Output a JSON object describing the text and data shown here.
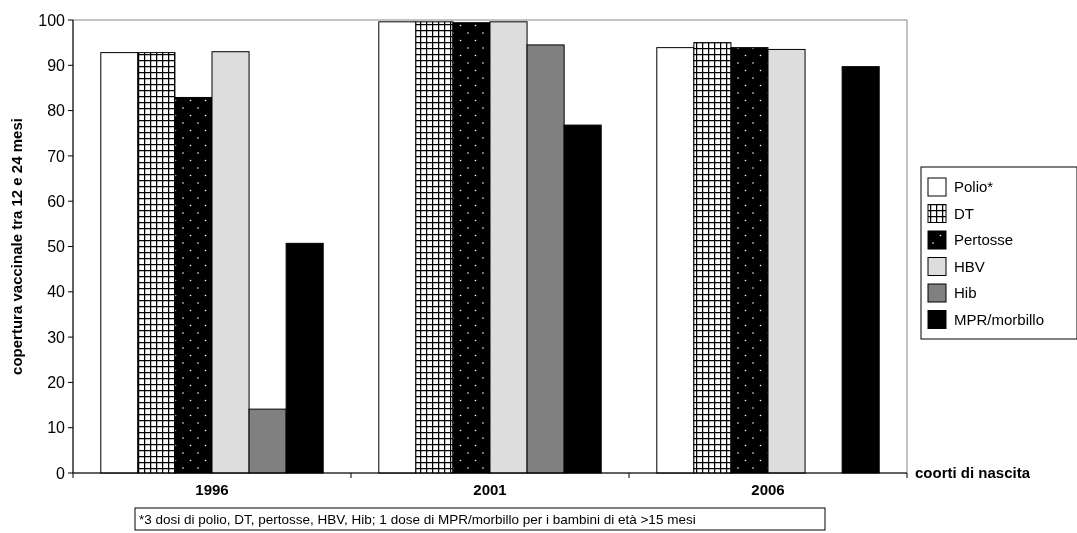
{
  "chart_data": {
    "type": "bar",
    "categories": [
      "1996",
      "2001",
      "2006"
    ],
    "series": [
      {
        "name": "Polio*",
        "color": "#ffffff",
        "values": [
          92.8,
          99.6,
          93.9
        ]
      },
      {
        "name": "DT",
        "color": "#000000",
        "values": [
          92.8,
          99.6,
          95.0
        ]
      },
      {
        "name": "Pertosse",
        "color": "#000000",
        "values": [
          82.9,
          99.4,
          93.9
        ]
      },
      {
        "name": "HBV",
        "color": "#dddddd",
        "values": [
          93.0,
          99.6,
          93.5
        ]
      },
      {
        "name": "Hib",
        "color": "#808080",
        "values": [
          14.1,
          94.5,
          null
        ]
      },
      {
        "name": "MPR/morbillo",
        "color": "#000000",
        "values": [
          50.7,
          76.8,
          89.7
        ]
      }
    ],
    "ylabel": "copertura vaccinale tra 12 e 24 mesi",
    "xlabel": "coorti di nascita",
    "ylim": [
      0,
      100
    ],
    "yticks": [
      0,
      10,
      20,
      30,
      40,
      50,
      60,
      70,
      80,
      90,
      100
    ],
    "legend": "right",
    "annotations": [
      "*3 dosi di polio, DT, pertosse, HBV, Hib; 1 dose di MPR/morbillo per i bambini di età >15 mesi"
    ]
  }
}
